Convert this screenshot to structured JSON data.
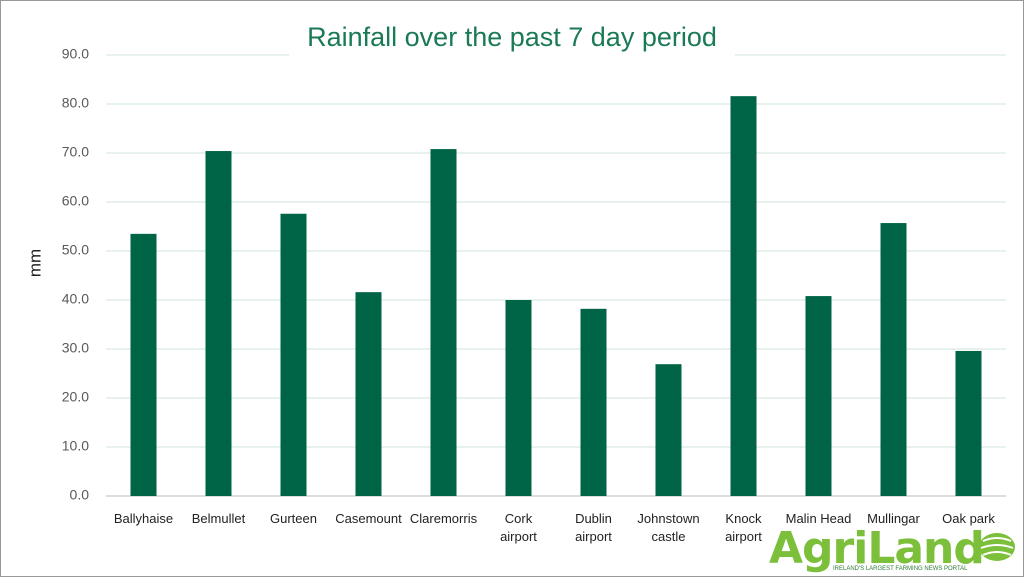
{
  "chart_data": {
    "type": "bar",
    "title": "Rainfall over the past 7 day period",
    "y_label": "mm",
    "categories": [
      "Ballyhaise",
      "Belmullet",
      "Gurteen",
      "Casemount",
      "Claremorris",
      "Cork\nairport",
      "Dublin\nairport",
      "Johnstown\ncastle",
      "Knock\nairport",
      "Malin Head",
      "Mullingar",
      "Oak park"
    ],
    "values": [
      53.5,
      70.4,
      57.6,
      41.6,
      70.8,
      40.0,
      38.2,
      26.9,
      81.6,
      40.8,
      55.7,
      29.6
    ],
    "color": "#006446",
    "ylim": [
      0,
      90
    ],
    "yticks": [
      {
        "value": 0,
        "label": "0.0"
      },
      {
        "value": 10,
        "label": "10.0"
      },
      {
        "value": 20,
        "label": "20.0"
      },
      {
        "value": 30,
        "label": "30.0"
      },
      {
        "value": 40,
        "label": "40.0"
      },
      {
        "value": 50,
        "label": "50.0"
      },
      {
        "value": 60,
        "label": "60.0"
      },
      {
        "value": 70,
        "label": "70.0"
      },
      {
        "value": 80,
        "label": "80.0"
      },
      {
        "value": 90,
        "label": "90.0"
      }
    ],
    "grid": true
  },
  "logo": {
    "name": "AgriLand",
    "tagline": "IRELAND'S LARGEST FARMING NEWS PORTAL"
  }
}
